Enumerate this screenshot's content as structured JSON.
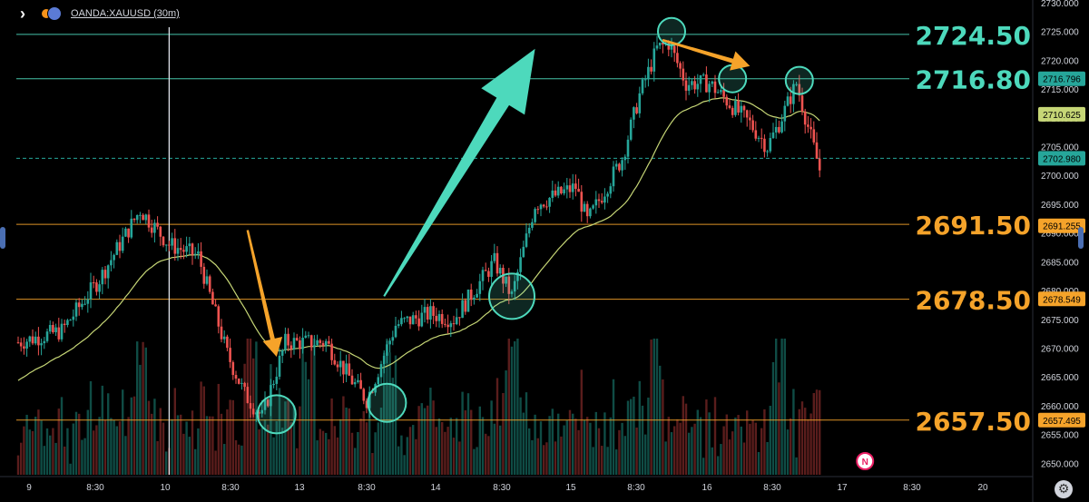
{
  "header": {
    "symbol_label": "OANDA:XAUUSD (30m)",
    "expand_icon": "chevron-right-icon",
    "status_icon": "orange-dot-icon",
    "flag_icon": "us-flag-icon"
  },
  "colors": {
    "background": "#000000",
    "teal": "#4dd9bc",
    "orange": "#f5a32a",
    "bull": "#26a69a",
    "bear": "#ef5350",
    "ma": "#c6d676",
    "price_tag": "#26a69a",
    "ma_tag": "#c6d676",
    "orange_tag": "#f5a32a"
  },
  "chart_data": {
    "type": "candlestick",
    "symbol": "OANDA:XAUUSD",
    "timeframe": "30m",
    "ylim": [
      2648,
      2730
    ],
    "y_ticks": [
      2650.0,
      2655.0,
      2660.0,
      2665.0,
      2670.0,
      2675.0,
      2680.0,
      2685.0,
      2690.0,
      2695.0,
      2700.0,
      2705.0,
      2710.0,
      2715.0,
      2720.0,
      2725.0,
      2730.0
    ],
    "x_ticks": [
      "9",
      "8:30",
      "10",
      "8:30",
      "13",
      "8:30",
      "14",
      "8:30",
      "15",
      "8:30",
      "16",
      "8:30",
      "17",
      "8:30",
      "20"
    ],
    "anchors": [
      [
        0,
        2671
      ],
      [
        15,
        2673
      ],
      [
        28,
        2682
      ],
      [
        42,
        2694
      ],
      [
        52,
        2688
      ],
      [
        62,
        2686
      ],
      [
        72,
        2669
      ],
      [
        78,
        2662
      ],
      [
        84,
        2658
      ],
      [
        92,
        2671
      ],
      [
        106,
        2671
      ],
      [
        114,
        2665
      ],
      [
        120,
        2661
      ],
      [
        130,
        2674
      ],
      [
        142,
        2676
      ],
      [
        150,
        2675
      ],
      [
        164,
        2685
      ],
      [
        170,
        2679
      ],
      [
        178,
        2695
      ],
      [
        192,
        2698
      ],
      [
        196,
        2692
      ],
      [
        208,
        2703
      ],
      [
        214,
        2714
      ],
      [
        220,
        2722
      ],
      [
        224,
        2723
      ],
      [
        230,
        2716
      ],
      [
        238,
        2716
      ],
      [
        246,
        2712
      ],
      [
        252,
        2709
      ],
      [
        258,
        2705
      ],
      [
        262,
        2709
      ],
      [
        268,
        2716
      ],
      [
        276,
        2701
      ]
    ],
    "ma_start": 2664,
    "levels": [
      {
        "price": 2724.5,
        "label": "2724.50",
        "color": "teal"
      },
      {
        "price": 2716.8,
        "label": "2716.80",
        "color": "teal"
      },
      {
        "price": 2691.5,
        "label": "2691.50",
        "color": "orange"
      },
      {
        "price": 2678.5,
        "label": "2678.50",
        "color": "orange"
      },
      {
        "price": 2657.5,
        "label": "2657.50",
        "color": "orange"
      }
    ],
    "price_tags": [
      {
        "price": 2716.796,
        "label": "2716.796",
        "color": "price_tag"
      },
      {
        "price": 2710.625,
        "label": "2710.625",
        "color": "ma_tag"
      },
      {
        "price": 2702.98,
        "label": "2702.980",
        "color": "price_tag"
      },
      {
        "price": 2691.255,
        "label": "2691.255",
        "color": "orange_tag"
      },
      {
        "price": 2678.549,
        "label": "2678.549",
        "color": "orange_tag"
      },
      {
        "price": 2657.495,
        "label": "2657.495",
        "color": "orange_tag"
      }
    ],
    "current_price": 2702.98,
    "circles": [
      {
        "bar": 89,
        "price": 2658.5
      },
      {
        "bar": 127,
        "price": 2660.5
      },
      {
        "bar": 170,
        "price": 2679.0
      },
      {
        "bar": 225,
        "price": 2725.0
      },
      {
        "bar": 246,
        "price": 2716.8
      },
      {
        "bar": 269,
        "price": 2716.5
      }
    ],
    "arrows": [
      {
        "from": [
          126,
          2679
        ],
        "to": [
          178,
          2722
        ],
        "color": "teal",
        "style": "big"
      },
      {
        "from": [
          79,
          2690.5
        ],
        "to": [
          89,
          2668.5
        ],
        "color": "orange",
        "style": "small"
      },
      {
        "from": [
          222,
          2723.5
        ],
        "to": [
          252,
          2719.0
        ],
        "color": "orange",
        "style": "small"
      }
    ],
    "vertical_marker_bar": 52,
    "event_badge": {
      "label": "N",
      "bar": 266
    }
  }
}
